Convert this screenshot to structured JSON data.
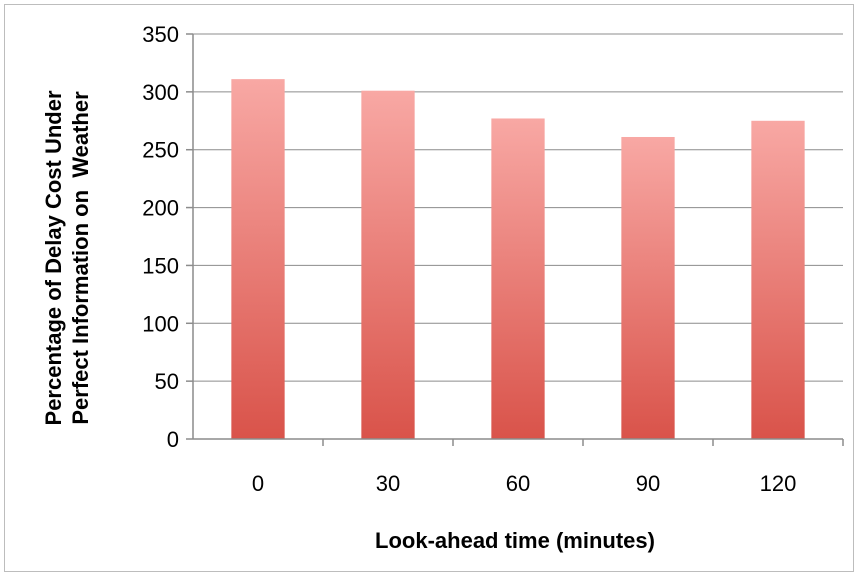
{
  "chart_data": {
    "type": "bar",
    "title": "",
    "xlabel": "Look-ahead time (minutes)",
    "ylabel_lines": [
      "Percentage of Delay Cost Under",
      "Perfect Information on  Weather"
    ],
    "categories": [
      "0",
      "30",
      "60",
      "90",
      "120"
    ],
    "values": [
      311,
      301,
      277,
      261,
      275
    ],
    "ylim": [
      0,
      350
    ],
    "yticks": [
      0,
      50,
      100,
      150,
      200,
      250,
      300,
      350
    ],
    "grid": true,
    "legend": "none",
    "bar_color_top": "#f8a8a4",
    "bar_color_bottom": "#d9534a"
  }
}
